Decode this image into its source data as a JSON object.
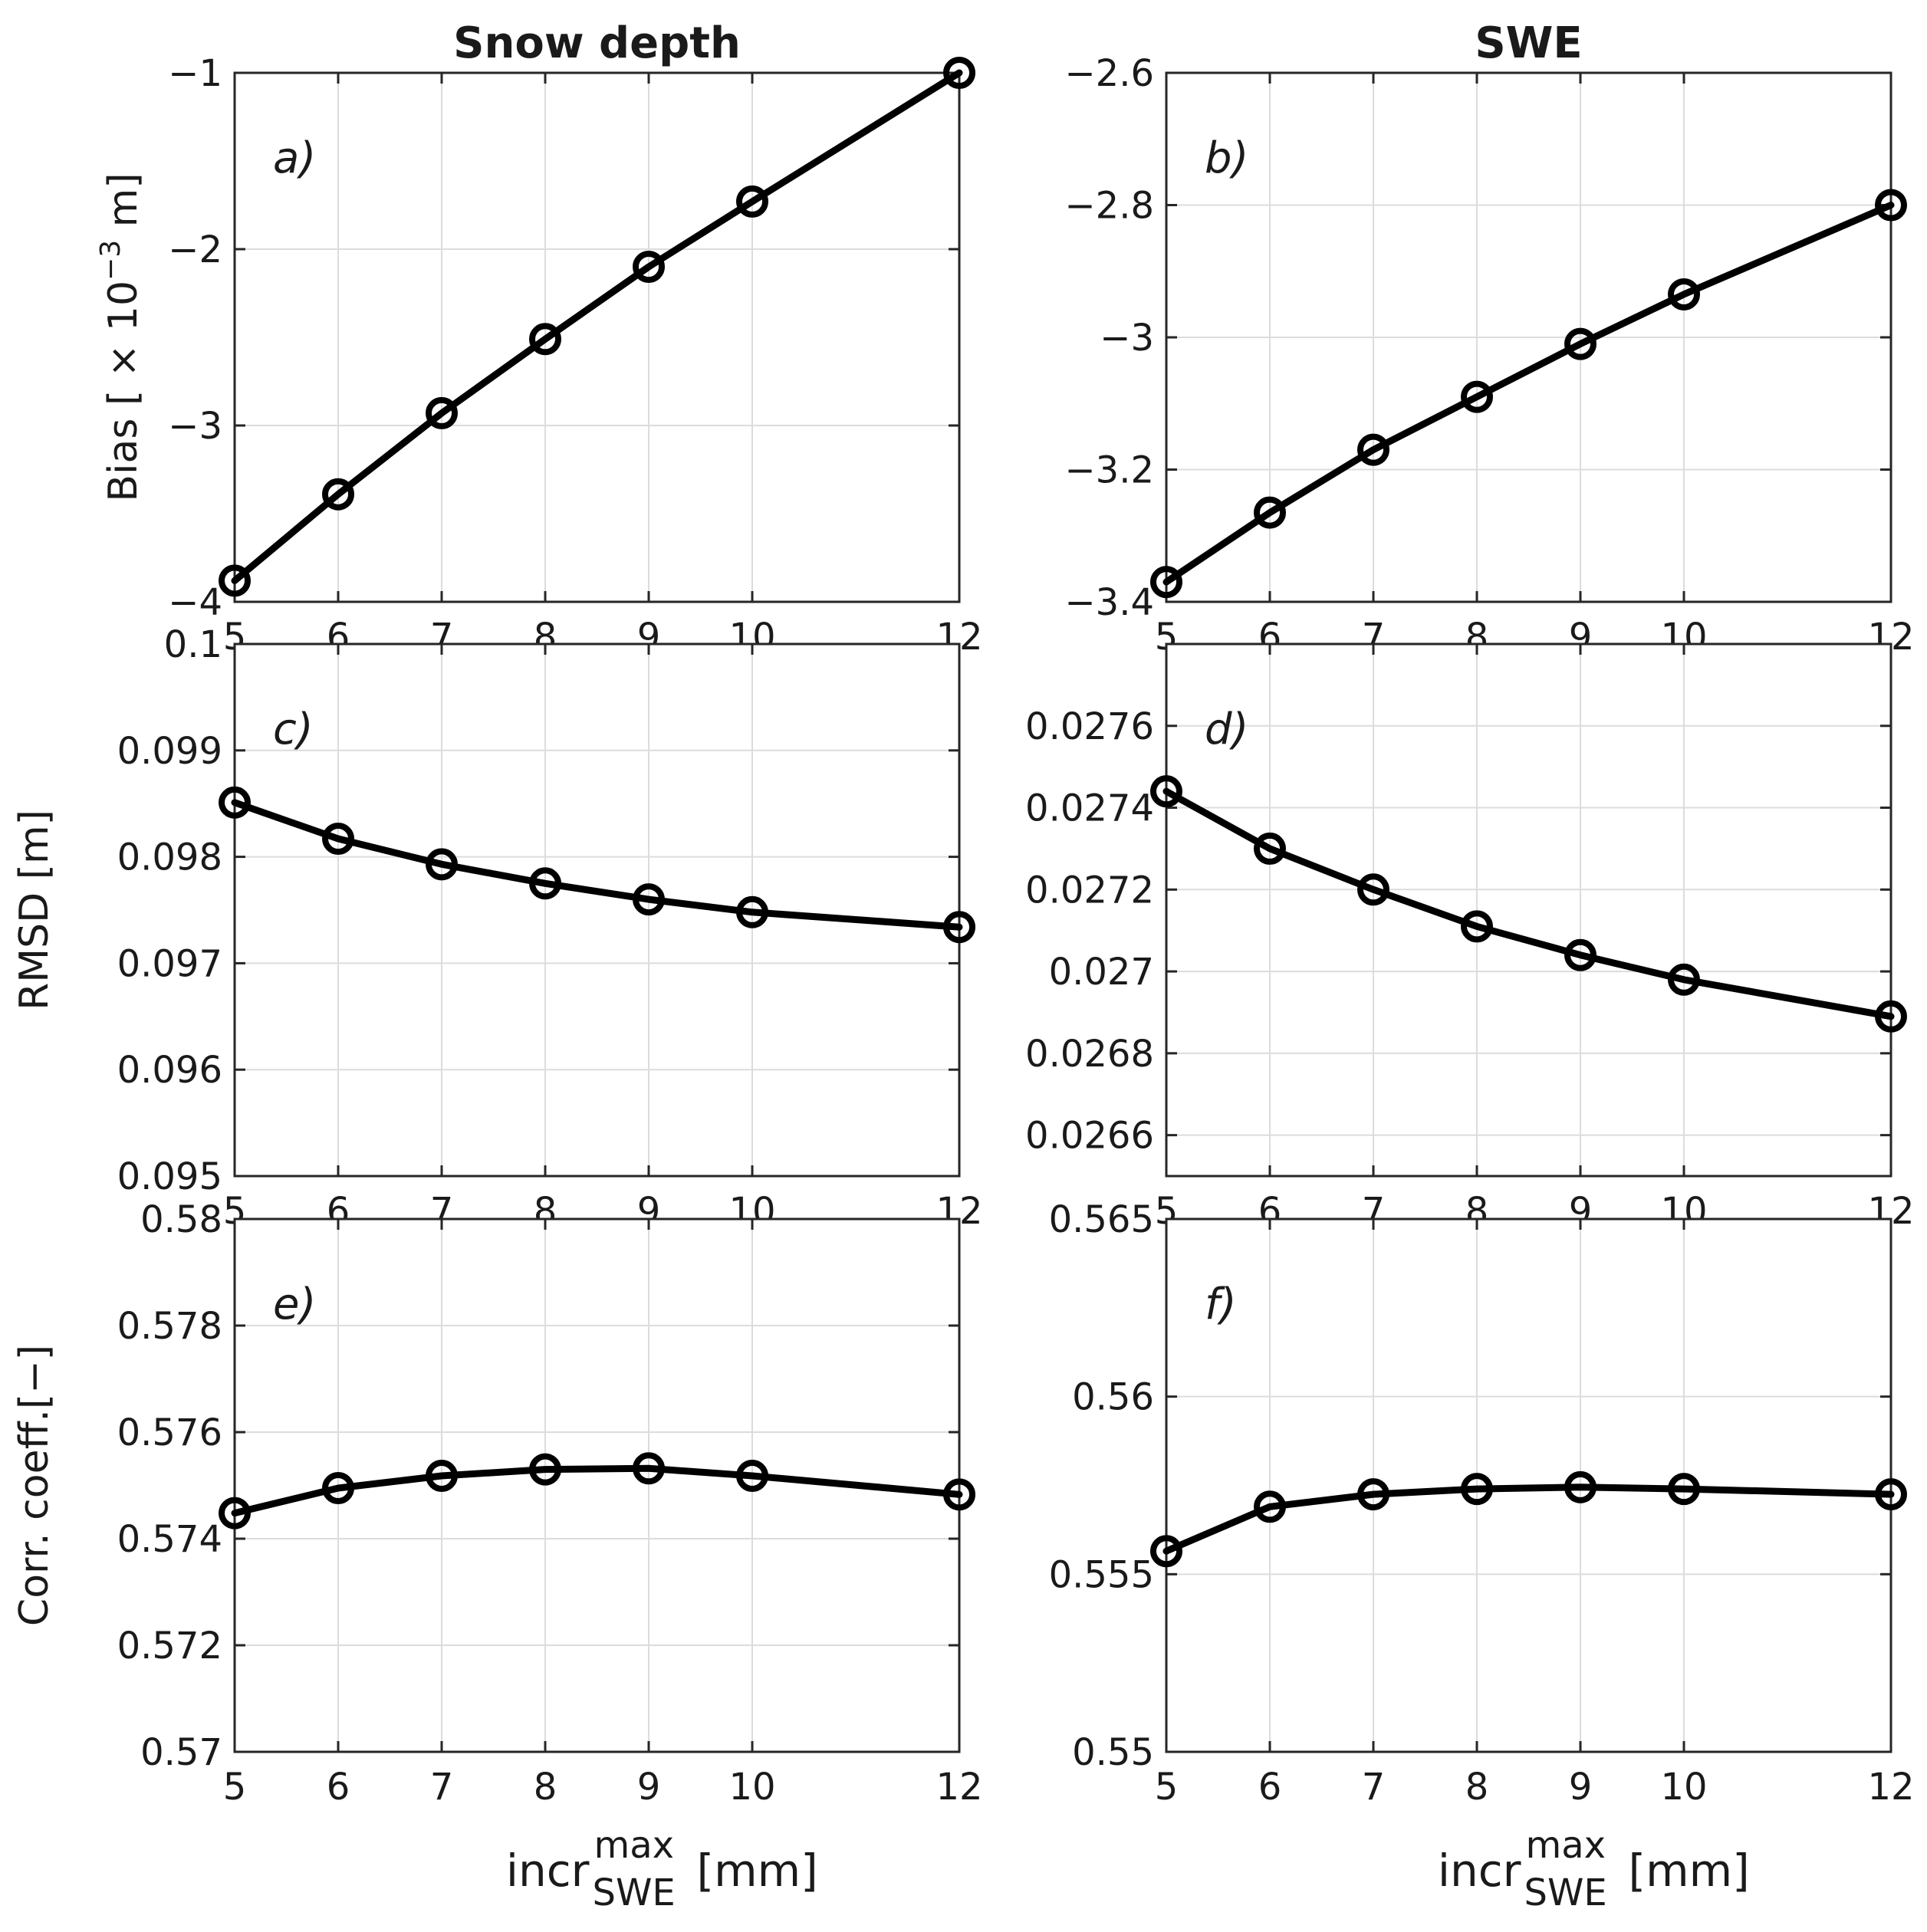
{
  "chart_data": [
    {
      "type": "line",
      "column_title": "Snow depth",
      "panel_label": "a)",
      "ylabel_text": "Bias [ × 10",
      "ylabel_exp": "−3",
      "ylabel_tail": " m]",
      "x": [
        5,
        6,
        7,
        8,
        9,
        10,
        12
      ],
      "xticklabels": [
        "5",
        "6",
        "7",
        "8",
        "9",
        "10",
        "12"
      ],
      "values": [
        -3.88,
        -3.39,
        -2.93,
        -2.51,
        -2.1,
        -1.73,
        -1.0
      ],
      "ylim": [
        -4,
        -1
      ],
      "yticks": [
        -4,
        -3,
        -2,
        -1
      ],
      "yticklabels": [
        "−4",
        "−3",
        "−2",
        "−1"
      ]
    },
    {
      "type": "line",
      "column_title": "SWE",
      "panel_label": "b)",
      "x": [
        5,
        6,
        7,
        8,
        9,
        10,
        12
      ],
      "xticklabels": [
        "5",
        "6",
        "7",
        "8",
        "9",
        "10",
        "12"
      ],
      "values": [
        -3.37,
        -3.265,
        -3.17,
        -3.09,
        -3.01,
        -2.935,
        -2.8
      ],
      "ylim": [
        -3.4,
        -2.6
      ],
      "yticks": [
        -3.4,
        -3.2,
        -3.0,
        -2.8,
        -2.6
      ],
      "yticklabels": [
        "−3.4",
        "−3.2",
        "−3",
        "−2.8",
        "−2.6"
      ]
    },
    {
      "type": "line",
      "panel_label": "c)",
      "ylabel": "RMSD [m]",
      "x": [
        5,
        6,
        7,
        8,
        9,
        10,
        12
      ],
      "xticklabels": [
        "5",
        "6",
        "7",
        "8",
        "9",
        "10",
        "12"
      ],
      "values": [
        0.09851,
        0.09817,
        0.09793,
        0.09775,
        0.0976,
        0.09748,
        0.09734
      ],
      "ylim": [
        0.095,
        0.1
      ],
      "yticks": [
        0.095,
        0.096,
        0.097,
        0.098,
        0.099,
        0.1
      ],
      "yticklabels": [
        "0.095",
        "0.096",
        "0.097",
        "0.098",
        "0.099",
        "0.1"
      ]
    },
    {
      "type": "line",
      "panel_label": "d)",
      "x": [
        5,
        6,
        7,
        8,
        9,
        10,
        12
      ],
      "xticklabels": [
        "5",
        "6",
        "7",
        "8",
        "9",
        "10",
        "12"
      ],
      "values": [
        0.02744,
        0.0273,
        0.0272,
        0.02711,
        0.02704,
        0.02698,
        0.02689
      ],
      "ylim": [
        0.0265,
        0.0278
      ],
      "yticks": [
        0.0266,
        0.0268,
        0.027,
        0.0272,
        0.0274,
        0.0276
      ],
      "yticklabels": [
        "0.0266",
        "0.0268",
        "0.027",
        "0.0272",
        "0.0274",
        "0.0276"
      ]
    },
    {
      "type": "line",
      "panel_label": "e)",
      "ylabel": "Corr. coeff.[−]",
      "xlabel_main": "incr",
      "xlabel_sup": "max",
      "xlabel_sub": "SWE",
      "xlabel_tail": " [mm]",
      "x": [
        5,
        6,
        7,
        8,
        9,
        10,
        12
      ],
      "xticklabels": [
        "5",
        "6",
        "7",
        "8",
        "9",
        "10",
        "12"
      ],
      "values": [
        0.57448,
        0.57495,
        0.57518,
        0.5753,
        0.57532,
        0.57518,
        0.57483
      ],
      "ylim": [
        0.57,
        0.58
      ],
      "yticks": [
        0.57,
        0.572,
        0.574,
        0.576,
        0.578,
        0.58
      ],
      "yticklabels": [
        "0.57",
        "0.572",
        "0.574",
        "0.576",
        "0.578",
        "0.58"
      ]
    },
    {
      "type": "line",
      "panel_label": "f)",
      "xlabel_main": "incr",
      "xlabel_sup": "max",
      "xlabel_sub": "SWE",
      "xlabel_tail": " [mm]",
      "x": [
        5,
        6,
        7,
        8,
        9,
        10,
        12
      ],
      "xticklabels": [
        "5",
        "6",
        "7",
        "8",
        "9",
        "10",
        "12"
      ],
      "values": [
        0.55565,
        0.5569,
        0.55725,
        0.5574,
        0.55745,
        0.5574,
        0.55725
      ],
      "ylim": [
        0.55,
        0.565
      ],
      "yticks": [
        0.55,
        0.555,
        0.56,
        0.565
      ],
      "yticklabels": [
        "0.55",
        "0.555",
        "0.56",
        "0.565"
      ]
    }
  ]
}
